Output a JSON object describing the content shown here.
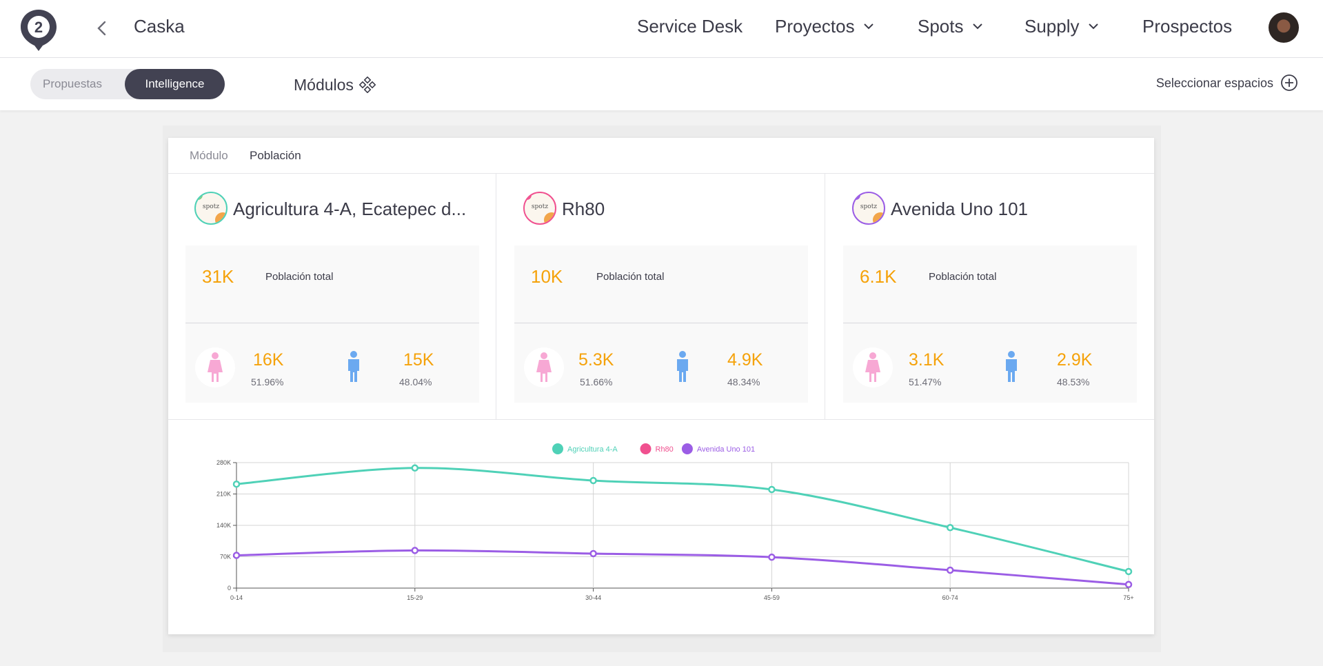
{
  "nav": {
    "project_name": "Caska",
    "links": [
      {
        "label": "Service Desk",
        "has_dropdown": false
      },
      {
        "label": "Proyectos",
        "has_dropdown": true
      },
      {
        "label": "Spots",
        "has_dropdown": true
      },
      {
        "label": "Supply",
        "has_dropdown": true
      },
      {
        "label": "Prospectos",
        "has_dropdown": false
      }
    ],
    "logo_number": "2"
  },
  "subbar": {
    "seg_proposals": "Propuestas",
    "seg_intelligence": "Intelligence",
    "modules": "Módulos",
    "select_spaces": "Seleccionar espacios"
  },
  "tabs": {
    "modulo": "Módulo",
    "poblacion": "Población"
  },
  "sites": [
    {
      "name": "Agricultura 4-A, Ecatepec d...",
      "logo_text": "spotz",
      "ring_color": "#4fd1b7",
      "total": "31K",
      "total_label": "Población total",
      "female": "16K",
      "female_pct": "51.96%",
      "male": "15K",
      "male_pct": "48.04%"
    },
    {
      "name": "Rh80",
      "logo_text": "spotz",
      "ring_color": "#f0508f",
      "total": "10K",
      "total_label": "Población total",
      "female": "5.3K",
      "female_pct": "51.66%",
      "male": "4.9K",
      "male_pct": "48.34%"
    },
    {
      "name": "Avenida Uno 101",
      "logo_text": "spotz",
      "ring_color": "#9b5de5",
      "total": "6.1K",
      "total_label": "Población total",
      "female": "3.1K",
      "female_pct": "51.47%",
      "male": "2.9K",
      "male_pct": "48.53%"
    }
  ],
  "colors": {
    "female": "#f7a8d4",
    "male": "#6ba9f0",
    "accent": "#f5a20a",
    "dark": "#424252"
  },
  "chart_data": {
    "type": "line",
    "categories": [
      "0-14",
      "15-29",
      "30-44",
      "45-59",
      "60-74",
      "75+"
    ],
    "y_ticks": [
      "0",
      "70K",
      "140K",
      "210K",
      "280K"
    ],
    "ylim": [
      0,
      280000
    ],
    "legend_position": "top-center",
    "grid": true,
    "series": [
      {
        "name": "Agricultura 4-A",
        "color": "#4fd1b7",
        "values": [
          232000,
          268000,
          240000,
          220000,
          135000,
          37000
        ],
        "visible": true
      },
      {
        "name": "Rh80",
        "color": "#f0508f",
        "values": [
          73000,
          84000,
          77000,
          69000,
          40000,
          8000
        ],
        "visible": false
      },
      {
        "name": "Avenida Uno 101",
        "color": "#9b5de5",
        "values": [
          73000,
          84000,
          77000,
          69000,
          40000,
          8000
        ],
        "visible": true
      }
    ]
  }
}
